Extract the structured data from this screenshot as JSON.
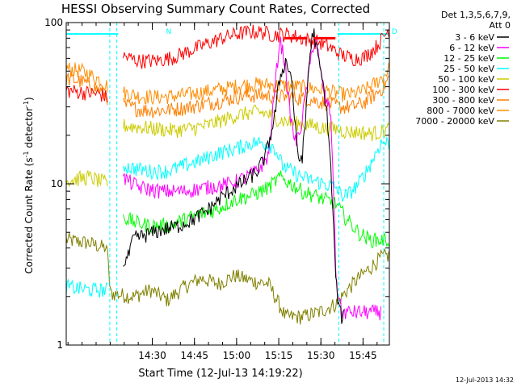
{
  "chart_data": {
    "type": "line",
    "title": "HESSI Observing Summary Count Rates, Corrected",
    "xlabel": "Start Time (12-Jul-13 14:19:22)",
    "ylabel": "Corrected Count Rate (s⁻¹ detector⁻¹)",
    "ylabel_parts": {
      "main": "Corrected Count Rate (s",
      "sup1": "-1",
      "mid": " detector",
      "sup2": "-1",
      "end": ")"
    },
    "yscale": "log",
    "xlim": [
      "14:19:22",
      "15:55"
    ],
    "ylim": [
      1,
      100
    ],
    "xticks": [
      {
        "label": "14:30",
        "min": 30.63
      },
      {
        "label": "14:45",
        "min": 45.63
      },
      {
        "label": "15:00",
        "min": 60.63
      },
      {
        "label": "15:15",
        "min": 75.63
      },
      {
        "label": "15:30",
        "min": 90.63
      },
      {
        "label": "15:45",
        "min": 105.63
      }
    ],
    "yticks": [
      {
        "label": "1",
        "value": 1
      },
      {
        "label": "10",
        "value": 10
      },
      {
        "label": "100",
        "value": 100
      }
    ],
    "legend_header": [
      "Det 1,3,5,6,7,9,",
      "Att 0"
    ],
    "legend_position": "right",
    "annotations": [
      {
        "text": "N",
        "color": "#00ffff",
        "at_min": 35.5
      },
      {
        "text": "D",
        "color": "#00ffff",
        "at_min": 115.8
      }
    ],
    "flare_bars": [
      {
        "color": "#ff0000",
        "start_min": 77.5,
        "end_min": 85.8,
        "y": 80
      },
      {
        "color": "#ff0000",
        "start_min": 88.0,
        "end_min": 95.8,
        "y": 80
      }
    ],
    "footer": "12-Jul-2013 14:32",
    "xmax_min": 115.0,
    "series": [
      {
        "name": "3 - 6 keV",
        "color": "#000000",
        "x": [
          0,
          10,
          17,
          20,
          22,
          24,
          28,
          34,
          40,
          45,
          50,
          55,
          60,
          64,
          68,
          71,
          74,
          76,
          78,
          80,
          81,
          82,
          83,
          84,
          85,
          86,
          87,
          88,
          89,
          90,
          91,
          92,
          93,
          94,
          95,
          96,
          97,
          98,
          99
        ],
        "y": [
          null,
          null,
          null,
          3.2,
          3.5,
          4.6,
          4.8,
          5.2,
          5.5,
          6.0,
          6.8,
          8.2,
          9.5,
          10.5,
          12.0,
          15.0,
          25.0,
          45.0,
          58.0,
          48.0,
          30.0,
          17.0,
          14.0,
          15.0,
          22.0,
          45.0,
          70.0,
          90.0,
          70.0,
          55.0,
          45.0,
          35.0,
          25.0,
          14.0,
          6.0,
          2.5,
          1.7,
          1.5,
          1.5
        ]
      },
      {
        "name": "6 - 12 keV",
        "color": "#ff00ff",
        "x": [
          0,
          10,
          17,
          20,
          26,
          34,
          42,
          50,
          58,
          64,
          68,
          72,
          74,
          76,
          78,
          79,
          80,
          81,
          82,
          84,
          86,
          88,
          89,
          90,
          92,
          94,
          95,
          96,
          98,
          104,
          110,
          112
        ],
        "y": [
          null,
          null,
          null,
          11.0,
          9.5,
          9.0,
          9.0,
          9.5,
          10.0,
          11.0,
          12.0,
          15.0,
          35.0,
          80.0,
          55.0,
          35.0,
          25.0,
          20.0,
          18.0,
          25.0,
          45.0,
          75.0,
          80.0,
          55.0,
          35.0,
          28.0,
          12.0,
          2.5,
          1.6,
          1.6,
          1.6,
          1.6
        ]
      },
      {
        "name": "12 - 25 keV",
        "color": "#00ff00",
        "x": [
          0,
          10,
          17,
          20,
          24,
          30,
          36,
          42,
          48,
          54,
          60,
          66,
          72,
          76,
          80,
          84,
          88,
          92,
          96,
          100,
          104,
          108,
          112,
          115
        ],
        "y": [
          null,
          null,
          null,
          6.3,
          5.8,
          5.5,
          5.5,
          6.0,
          6.5,
          7.0,
          8.0,
          8.5,
          9.5,
          11.0,
          10.0,
          9.0,
          8.5,
          8.0,
          7.5,
          6.0,
          5.0,
          4.5,
          4.5,
          4.5
        ]
      },
      {
        "name": "25 - 50 keV",
        "color": "#00ffff",
        "x": [
          0,
          8,
          15,
          15.5,
          20,
          24,
          30,
          36,
          42,
          48,
          54,
          60,
          66,
          70,
          74,
          77,
          80,
          84,
          88,
          92,
          96,
          98,
          100,
          104,
          108,
          112,
          115
        ],
        "y": [
          2.3,
          2.2,
          2.2,
          null,
          13.0,
          12.5,
          12.0,
          12.0,
          13.0,
          14.0,
          15.5,
          16.5,
          18.0,
          18.0,
          17.0,
          13.0,
          12.0,
          11.0,
          10.5,
          10.0,
          9.5,
          8.5,
          8.5,
          10.0,
          13.0,
          18.0,
          18.0
        ]
      },
      {
        "name": "50 - 100 keV",
        "color": "#cccc00",
        "x": [
          0,
          8,
          15,
          15.5,
          20,
          26,
          32,
          38,
          44,
          50,
          56,
          62,
          68,
          72,
          76,
          80,
          84,
          88,
          92,
          96,
          100,
          104,
          108,
          112,
          115
        ],
        "y": [
          10.5,
          11.0,
          10.0,
          null,
          23.0,
          22.5,
          22.0,
          21.5,
          22.0,
          23.0,
          25.0,
          27.0,
          28.0,
          27.0,
          25.0,
          24.0,
          23.5,
          23.0,
          22.0,
          22.0,
          21.0,
          21.0,
          20.5,
          21.0,
          22.0
        ]
      },
      {
        "name": "100 - 300 keV",
        "color": "#ff0000",
        "x": [
          0,
          6,
          12,
          15,
          15.5,
          20,
          26,
          32,
          38,
          44,
          50,
          56,
          62,
          66,
          70,
          74,
          78,
          82,
          86,
          90,
          94,
          98,
          102,
          106,
          110,
          113,
          115
        ],
        "y": [
          38.0,
          37.0,
          36.0,
          34.0,
          null,
          62.0,
          58.0,
          58.0,
          61.0,
          67.0,
          74.0,
          81.0,
          86.0,
          88.0,
          87.0,
          84.0,
          85.0,
          82.0,
          78.0,
          76.0,
          70.0,
          63.0,
          60.0,
          61.0,
          70.0,
          82.0,
          92.0
        ]
      },
      {
        "name": "300 - 800 keV",
        "color": "#ff7f00",
        "x": [
          0,
          6,
          12,
          15,
          15.5,
          20,
          26,
          32,
          38,
          44,
          50,
          56,
          62,
          68,
          74,
          80,
          86,
          92,
          98,
          102,
          106,
          110,
          113,
          115
        ],
        "y": [
          45.0,
          43.0,
          38.0,
          34.0,
          null,
          31.0,
          29.0,
          28.5,
          29.0,
          30.0,
          31.5,
          33.0,
          35.0,
          35.5,
          35.0,
          34.5,
          33.5,
          32.0,
          30.0,
          30.0,
          32.0,
          36.0,
          40.0,
          46.0
        ]
      },
      {
        "name": "800 - 7000 keV",
        "color": "#ff8c00",
        "x": [
          0,
          6,
          12,
          15,
          15.5,
          20,
          26,
          32,
          38,
          44,
          50,
          56,
          62,
          68,
          74,
          80,
          86,
          92,
          98,
          102,
          106,
          110,
          113,
          115
        ],
        "y": [
          52.0,
          50.0,
          44.0,
          40.0,
          null,
          37.0,
          35.0,
          34.5,
          35.0,
          36.0,
          37.5,
          39.0,
          41.0,
          41.5,
          41.0,
          40.5,
          39.5,
          38.0,
          36.0,
          36.0,
          38.0,
          42.0,
          47.0,
          52.0
        ]
      },
      {
        "name": "7000 - 20000 keV",
        "color": "#808000",
        "x": [
          0,
          8,
          14,
          15,
          15.5,
          24,
          30,
          36,
          42,
          48,
          54,
          60,
          66,
          72,
          78,
          84,
          90,
          96,
          100,
          104,
          108,
          112,
          115
        ],
        "y": [
          4.5,
          4.3,
          4.0,
          3.5,
          2.1,
          2.0,
          2.2,
          1.9,
          2.3,
          2.6,
          2.4,
          2.7,
          2.5,
          2.4,
          1.5,
          1.5,
          1.6,
          1.8,
          2.2,
          2.6,
          3.0,
          3.5,
          3.6
        ]
      },
      {
        "name": "",
        "color": "#00ffff",
        "x": [
          0,
          12,
          18.5,
          18.5,
          115
        ],
        "y": [
          85,
          85,
          85,
          null,
          null
        ]
      },
      {
        "name": "",
        "color": "#00ffff",
        "x": [
          96.5,
          115
        ],
        "y": [
          85,
          85
        ]
      }
    ]
  }
}
